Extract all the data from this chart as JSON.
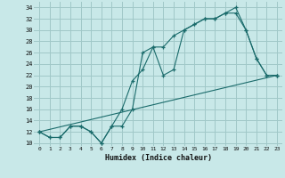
{
  "xlabel": "Humidex (Indice chaleur)",
  "bg_color": "#c8e8e8",
  "grid_color": "#a0c8c8",
  "line_color": "#1a6b6b",
  "xlim": [
    -0.5,
    23.5
  ],
  "ylim": [
    9.5,
    35
  ],
  "yticks": [
    10,
    12,
    14,
    16,
    18,
    20,
    22,
    24,
    26,
    28,
    30,
    32,
    34
  ],
  "xticks": [
    0,
    1,
    2,
    3,
    4,
    5,
    6,
    7,
    8,
    9,
    10,
    11,
    12,
    13,
    14,
    15,
    16,
    17,
    18,
    19,
    20,
    21,
    22,
    23
  ],
  "line1_x": [
    0,
    1,
    2,
    3,
    4,
    5,
    6,
    7,
    8,
    9,
    10,
    11,
    12,
    13,
    14,
    15,
    16,
    17,
    18,
    19,
    20,
    21,
    22,
    23
  ],
  "line1_y": [
    12,
    11,
    11,
    13,
    13,
    12,
    10,
    13,
    16,
    21,
    23,
    27,
    27,
    29,
    30,
    31,
    32,
    32,
    33,
    34,
    30,
    25,
    22,
    22
  ],
  "line2_x": [
    0,
    1,
    2,
    3,
    4,
    5,
    6,
    7,
    8,
    9,
    10,
    11,
    12,
    13,
    14,
    15,
    16,
    17,
    18,
    19,
    20,
    21,
    22,
    23
  ],
  "line2_y": [
    12,
    11,
    11,
    13,
    13,
    12,
    10,
    13,
    13,
    16,
    26,
    27,
    22,
    23,
    30,
    31,
    32,
    32,
    33,
    33,
    30,
    25,
    22,
    22
  ],
  "line3_x": [
    0,
    23
  ],
  "line3_y": [
    12,
    22
  ]
}
